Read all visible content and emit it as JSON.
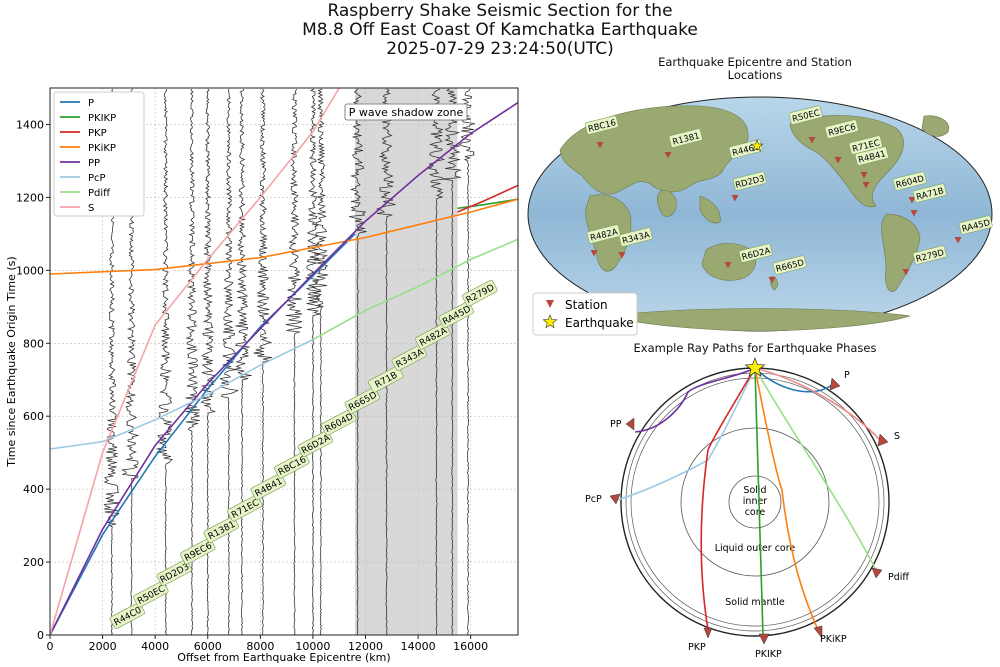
{
  "title": {
    "line1": "Raspberry Shake Seismic Section for the",
    "line2": "M8.8 Off East Coast Of Kamchatka Earthquake",
    "line3": "2025-07-29 23:24:50(UTC)"
  },
  "chart_data": [
    {
      "type": "line",
      "xlabel": "Offset from Earthquake Epicentre (km)",
      "ylabel": "Time since Earthquake Origin Time (s)",
      "xlim": [
        0,
        17800
      ],
      "ylim": [
        0,
        1500
      ],
      "xticks": [
        0,
        2000,
        4000,
        6000,
        8000,
        10000,
        12000,
        14000,
        16000
      ],
      "yticks": [
        0,
        200,
        400,
        600,
        800,
        1000,
        1200,
        1400
      ],
      "grid": true,
      "legend_position": "top-left",
      "shadow_zone": {
        "label": "P wave shadow zone",
        "x": [
          11600,
          15500
        ]
      },
      "series": [
        {
          "name": "P",
          "color": "#1f77b4",
          "x": [
            0,
            2000,
            4000,
            6000,
            8000,
            10000,
            11600
          ],
          "y": [
            0,
            275,
            490,
            675,
            845,
            985,
            1100
          ]
        },
        {
          "name": "PKIKP",
          "color": "#2ca02c",
          "x": [
            15500,
            16500,
            17800
          ],
          "y": [
            1170,
            1180,
            1195
          ]
        },
        {
          "name": "PKP",
          "color": "#d62728",
          "x": [
            15500,
            16500,
            17800
          ],
          "y": [
            1160,
            1190,
            1233
          ]
        },
        {
          "name": "PKiKP",
          "color": "#ff7f0e",
          "x": [
            0,
            4000,
            8000,
            12000,
            16000,
            17800
          ],
          "y": [
            990,
            1002,
            1035,
            1090,
            1160,
            1195
          ]
        },
        {
          "name": "PP",
          "color": "#7030a0",
          "x": [
            0,
            2000,
            4000,
            6000,
            8000,
            10000,
            12000,
            14000,
            16000,
            17800
          ],
          "y": [
            0,
            290,
            520,
            690,
            840,
            990,
            1135,
            1260,
            1375,
            1460
          ]
        },
        {
          "name": "PcP",
          "color": "#9ecae1",
          "x": [
            0,
            2000,
            4000,
            6000,
            8000,
            10000
          ],
          "y": [
            510,
            530,
            590,
            660,
            740,
            810
          ]
        },
        {
          "name": "Pdiff",
          "color": "#98df8a",
          "x": [
            10000,
            12000,
            14000,
            16000,
            17800
          ],
          "y": [
            810,
            890,
            955,
            1030,
            1085
          ]
        },
        {
          "name": "S",
          "color": "#f4a3a8",
          "x": [
            0,
            2000,
            4000,
            6000,
            8000,
            10000,
            11000
          ],
          "y": [
            0,
            500,
            850,
            1030,
            1200,
            1380,
            1500
          ]
        }
      ],
      "traces": [
        {
          "x": 2350,
          "t0": 300,
          "label": "R44C0"
        },
        {
          "x": 3100,
          "t0": 430,
          "label": "R50EC"
        },
        {
          "x": 4400,
          "t0": 470,
          "label": "RD2D3"
        },
        {
          "x": 5400,
          "t0": 560,
          "label": "R9EC6"
        },
        {
          "x": 6000,
          "t0": 610,
          "label": "R1381"
        },
        {
          "x": 6800,
          "t0": 650,
          "label": "R71EC"
        },
        {
          "x": 7300,
          "t0": 700,
          "label": "R4B41"
        },
        {
          "x": 8100,
          "t0": 750,
          "label": "RBC16"
        },
        {
          "x": 9300,
          "t0": 830,
          "label": "R6D2A"
        },
        {
          "x": 10000,
          "t0": 880,
          "label": "R604D"
        },
        {
          "x": 10300,
          "t0": 900,
          "label": "R665D"
        },
        {
          "x": 11700,
          "t0": 1100,
          "label": "R71B"
        },
        {
          "x": 12800,
          "t0": 1150,
          "label": "R343A"
        },
        {
          "x": 14700,
          "t0": 1200,
          "label": "R482A"
        },
        {
          "x": 15300,
          "t0": 1250,
          "label": "RA45D"
        },
        {
          "x": 15900,
          "t0": 1300,
          "label": "R279D"
        }
      ]
    }
  ],
  "map": {
    "title_line1": "Earthquake Epicentre and Station",
    "title_line2": "Locations",
    "legend_station": "Station",
    "legend_earthquake": "Earthquake",
    "station_labels": [
      "RBC16",
      "R1381",
      "R446C",
      "R50EC",
      "R9EC6",
      "R71EC",
      "R4B41",
      "RD2D3",
      "R604D",
      "RA71B",
      "R482A",
      "R343A",
      "R6D2A",
      "R665D",
      "R279D",
      "RA45D"
    ]
  },
  "rays": {
    "title": "Example Ray Paths for Earthquake Phases",
    "inner_core_line1": "Solid",
    "inner_core_line2": "inner",
    "inner_core_line3": "core",
    "outer_core": "Liquid outer core",
    "mantle": "Solid mantle",
    "phase_labels": [
      "P",
      "S",
      "PP",
      "PcP",
      "Pdiff",
      "PKP",
      "PKIKP",
      "PKiKP"
    ]
  }
}
